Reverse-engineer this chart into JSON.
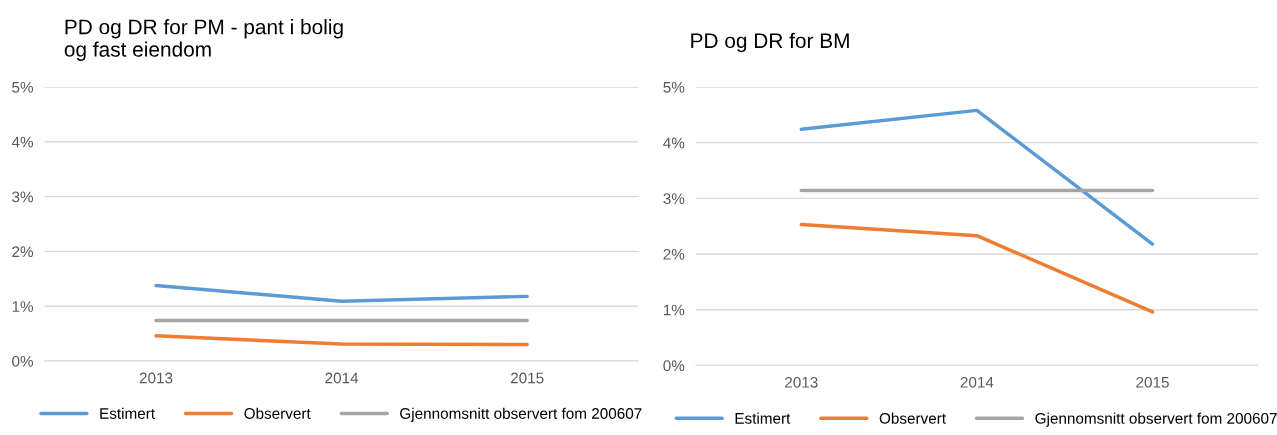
{
  "chart_data": [
    {
      "type": "line",
      "title": "PD og DR for PM - pant i bolig\nog fast eiendom",
      "categories": [
        "2013",
        "2014",
        "2015"
      ],
      "series": [
        {
          "name": "Estimert",
          "color": "#5b9bd5",
          "values": [
            1.38,
            1.09,
            1.18
          ]
        },
        {
          "name": "Observert",
          "color": "#ed7d31",
          "values": [
            0.46,
            0.31,
            0.3
          ]
        },
        {
          "name": "Gjennomsnitt observert fom 200607",
          "color": "#a5a5a5",
          "values": [
            0.74,
            0.74,
            0.74
          ]
        }
      ],
      "ylim": [
        0,
        5
      ],
      "yticks": [
        {
          "value": 0,
          "label": "0%"
        },
        {
          "value": 1,
          "label": "1%"
        },
        {
          "value": 2,
          "label": "2%"
        },
        {
          "value": 3,
          "label": "3%"
        },
        {
          "value": 4,
          "label": "4%"
        },
        {
          "value": 5,
          "label": "5%"
        }
      ],
      "grid": "y",
      "legend": "bottom",
      "marker": "none",
      "line_style": "solid"
    },
    {
      "type": "line",
      "title": "PD og DR for BM",
      "categories": [
        "2013",
        "2014",
        "2015"
      ],
      "series": [
        {
          "name": "Estimert",
          "color": "#5b9bd5",
          "values": [
            4.24,
            4.58,
            2.18
          ]
        },
        {
          "name": "Observert",
          "color": "#ed7d31",
          "values": [
            2.53,
            2.33,
            0.96
          ]
        },
        {
          "name": "Gjennomsnitt observert fom 200607",
          "color": "#a5a5a5",
          "values": [
            3.14,
            3.14,
            3.14
          ]
        }
      ],
      "ylim": [
        0,
        5
      ],
      "yticks": [
        {
          "value": 0,
          "label": "0%"
        },
        {
          "value": 1,
          "label": "1%"
        },
        {
          "value": 2,
          "label": "2%"
        },
        {
          "value": 3,
          "label": "3%"
        },
        {
          "value": 4,
          "label": "4%"
        },
        {
          "value": 5,
          "label": "5%"
        }
      ],
      "grid": "y",
      "legend": "bottom",
      "marker": "none",
      "line_style": "solid"
    }
  ]
}
